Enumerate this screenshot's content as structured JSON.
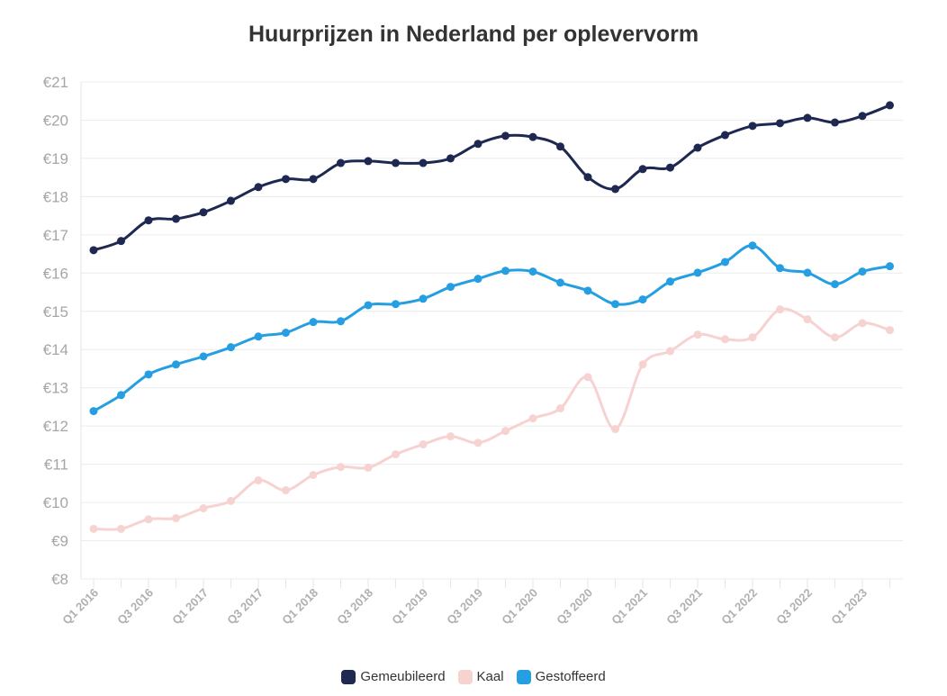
{
  "chart_data": {
    "type": "line",
    "title": "Huurprijzen in Nederland per oplevervorm",
    "xlabel": "",
    "ylabel": "",
    "ylim": [
      8,
      21
    ],
    "yticks": [
      "€8",
      "€9",
      "€10",
      "€11",
      "€12",
      "€13",
      "€14",
      "€15",
      "€16",
      "€17",
      "€18",
      "€19",
      "€20",
      "€21"
    ],
    "x": [
      "Q1 2016",
      "Q2 2016",
      "Q3 2016",
      "Q4 2016",
      "Q1 2017",
      "Q2 2017",
      "Q3 2017",
      "Q4 2017",
      "Q1 2018",
      "Q2 2018",
      "Q3 2018",
      "Q4 2018",
      "Q1 2019",
      "Q2 2019",
      "Q3 2019",
      "Q4 2019",
      "Q1 2020",
      "Q2 2020",
      "Q3 2020",
      "Q4 2020",
      "Q1 2021",
      "Q2 2021",
      "Q3 2021",
      "Q4 2021",
      "Q1 2022",
      "Q2 2022",
      "Q3 2022",
      "Q4 2022",
      "Q1 2023",
      "Q2 2023"
    ],
    "legend_position": "bottom",
    "grid": true,
    "series": [
      {
        "name": "Gemeubileerd",
        "color": "#1e2851",
        "values": [
          16.6,
          16.84,
          17.38,
          17.42,
          17.59,
          17.89,
          18.25,
          18.46,
          18.46,
          18.88,
          18.93,
          18.88,
          18.88,
          19.0,
          19.38,
          19.59,
          19.56,
          19.31,
          18.51,
          18.2,
          18.72,
          18.76,
          19.28,
          19.61,
          19.85,
          19.92,
          20.06,
          19.94,
          20.11,
          20.39
        ]
      },
      {
        "name": "Kaal",
        "color": "#f6d3d1",
        "values": [
          9.31,
          9.31,
          9.56,
          9.59,
          9.85,
          10.04,
          10.58,
          10.32,
          10.72,
          10.93,
          10.91,
          11.26,
          11.52,
          11.73,
          11.56,
          11.87,
          12.2,
          12.46,
          13.28,
          11.92,
          13.61,
          13.96,
          14.39,
          14.27,
          14.32,
          15.05,
          14.79,
          14.32,
          14.69,
          14.51
        ]
      },
      {
        "name": "Gestoffeerd",
        "color": "#259fe2",
        "values": [
          12.39,
          12.81,
          13.35,
          13.61,
          13.82,
          14.06,
          14.34,
          14.44,
          14.72,
          14.74,
          15.16,
          15.19,
          15.33,
          15.64,
          15.85,
          16.06,
          16.04,
          15.75,
          15.54,
          15.19,
          15.31,
          15.78,
          16.01,
          16.29,
          16.72,
          16.13,
          16.01,
          15.71,
          16.04,
          16.18
        ]
      }
    ]
  }
}
